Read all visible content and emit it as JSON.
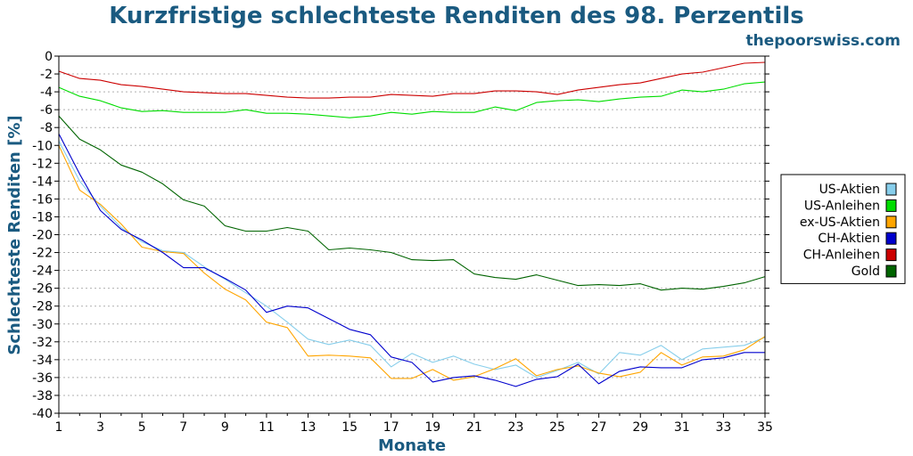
{
  "title": "Kurzfristige schlechteste Renditen des 98. Perzentils",
  "site": "thepoorswiss.com",
  "chart_data": {
    "type": "line",
    "title": "Kurzfristige schlechteste Renditen des 98. Perzentils",
    "xlabel": "Monate",
    "ylabel": "Schlechteste Renditen [%]",
    "xlim": [
      1,
      35
    ],
    "ylim": [
      -40,
      0
    ],
    "xticks": [
      1,
      3,
      5,
      7,
      9,
      11,
      13,
      15,
      17,
      19,
      21,
      23,
      25,
      27,
      29,
      31,
      33,
      35
    ],
    "yticks": [
      0,
      -2,
      -4,
      -6,
      -8,
      -10,
      -12,
      -14,
      -16,
      -18,
      -20,
      -22,
      -24,
      -26,
      -28,
      -30,
      -32,
      -34,
      -36,
      -38,
      -40
    ],
    "grid": true,
    "legend_position": "right",
    "x": [
      1,
      2,
      3,
      4,
      5,
      6,
      7,
      8,
      9,
      10,
      11,
      12,
      13,
      14,
      15,
      16,
      17,
      18,
      19,
      20,
      21,
      22,
      23,
      24,
      25,
      26,
      27,
      28,
      29,
      30,
      31,
      32,
      33,
      34,
      35
    ],
    "series": [
      {
        "name": "US-Aktien",
        "color": "#87ceeb",
        "values": [
          -9.5,
          -14.0,
          -16.8,
          -19.2,
          -20.8,
          -21.8,
          -22.0,
          -23.6,
          -25.0,
          -26.5,
          -28.0,
          -29.8,
          -31.7,
          -32.3,
          -31.8,
          -32.4,
          -34.8,
          -33.3,
          -34.3,
          -33.6,
          -34.5,
          -35.1,
          -34.6,
          -36.0,
          -35.2,
          -34.3,
          -35.6,
          -33.2,
          -33.5,
          -32.4,
          -34.0,
          -32.8,
          -32.6,
          -32.4,
          -31.5
        ]
      },
      {
        "name": "US-Anleihen",
        "color": "#00dd00",
        "values": [
          -3.5,
          -4.5,
          -5.0,
          -5.8,
          -6.2,
          -6.1,
          -6.3,
          -6.3,
          -6.3,
          -6.0,
          -6.4,
          -6.4,
          -6.5,
          -6.7,
          -6.9,
          -6.7,
          -6.3,
          -6.5,
          -6.2,
          -6.3,
          -6.3,
          -5.7,
          -6.1,
          -5.2,
          -5.0,
          -4.9,
          -5.1,
          -4.8,
          -4.6,
          -4.5,
          -3.8,
          -4.0,
          -3.7,
          -3.1,
          -2.9
        ]
      },
      {
        "name": "ex-US-Aktien",
        "color": "#ffa500",
        "values": [
          -10.0,
          -15.0,
          -16.6,
          -18.8,
          -21.4,
          -21.9,
          -22.1,
          -24.3,
          -26.1,
          -27.3,
          -29.8,
          -30.4,
          -33.6,
          -33.5,
          -33.6,
          -33.8,
          -36.1,
          -36.1,
          -35.1,
          -36.3,
          -35.9,
          -35.0,
          -33.9,
          -35.8,
          -35.1,
          -34.7,
          -35.5,
          -35.9,
          -35.4,
          -33.2,
          -34.6,
          -33.7,
          -33.6,
          -32.9,
          -31.4
        ]
      },
      {
        "name": "CH-Aktien",
        "color": "#0000cd",
        "values": [
          -8.7,
          -13.2,
          -17.3,
          -19.4,
          -20.6,
          -22.0,
          -23.7,
          -23.7,
          -24.9,
          -26.2,
          -28.7,
          -28.0,
          -28.2,
          -29.4,
          -30.6,
          -31.2,
          -33.7,
          -34.3,
          -36.5,
          -36.0,
          -35.8,
          -36.3,
          -37.0,
          -36.2,
          -35.9,
          -34.5,
          -36.7,
          -35.3,
          -34.8,
          -34.9,
          -34.9,
          -34.0,
          -33.8,
          -33.2,
          -33.2
        ]
      },
      {
        "name": "CH-Anleihen",
        "color": "#cc0000",
        "values": [
          -1.7,
          -2.5,
          -2.7,
          -3.2,
          -3.4,
          -3.7,
          -4.0,
          -4.1,
          -4.2,
          -4.2,
          -4.4,
          -4.6,
          -4.7,
          -4.7,
          -4.6,
          -4.6,
          -4.3,
          -4.4,
          -4.5,
          -4.2,
          -4.2,
          -3.9,
          -3.9,
          -4.0,
          -4.3,
          -3.8,
          -3.5,
          -3.2,
          -3.0,
          -2.5,
          -2.0,
          -1.8,
          -1.3,
          -0.8,
          -0.7
        ]
      },
      {
        "name": "Gold",
        "color": "#006400",
        "values": [
          -6.7,
          -9.3,
          -10.5,
          -12.2,
          -13.0,
          -14.3,
          -16.1,
          -16.8,
          -19.0,
          -19.6,
          -19.6,
          -19.2,
          -19.6,
          -21.7,
          -21.5,
          -21.7,
          -22.0,
          -22.8,
          -22.9,
          -22.8,
          -24.4,
          -24.8,
          -25.0,
          -24.5,
          -25.1,
          -25.7,
          -25.6,
          -25.7,
          -25.5,
          -26.2,
          -26.0,
          -26.1,
          -25.8,
          -25.4,
          -24.7
        ]
      }
    ]
  }
}
